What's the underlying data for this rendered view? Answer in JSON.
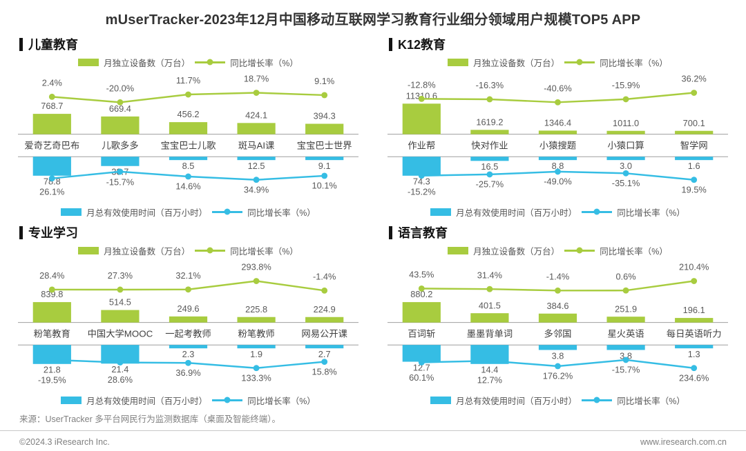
{
  "title": "mUserTracker-2023年12月中国移动互联网学习教育行业细分领域用户规模TOP5 APP",
  "legend": {
    "devices": "月独立设备数（万台）",
    "usage": "月总有效使用时间（百万小时）",
    "growth": "同比增长率（%）"
  },
  "colors": {
    "green": "#a8cc3f",
    "blue": "#35bde4",
    "axis": "#9e9e9e",
    "value_text": "#595959",
    "app_text": "#404040"
  },
  "footer": {
    "source": "来源：UserTracker 多平台网民行为监测数据库（桌面及智能终端）。",
    "copyright": "©2024.3 iResearch Inc.",
    "website": "www.iresearch.com.cn"
  },
  "chart_data": [
    {
      "type": "bar",
      "title": "儿童教育",
      "legend_position": "top and bottom, centered",
      "grid": false,
      "layout": "mirrored bar chart: green bars up from shared axis band, blue bars down; growth lines overlaid",
      "categories": [
        "爱奇艺奇巴布",
        "儿歌多多",
        "宝宝巴士儿歌",
        "斑马AI课",
        "宝宝巴士世界"
      ],
      "series": [
        {
          "name": "月独立设备数（万台）",
          "type": "bar",
          "color": "green",
          "values": [
            768.7,
            669.4,
            456.2,
            424.1,
            394.3
          ]
        },
        {
          "name": "同比增长率（%）",
          "type": "line",
          "color": "green",
          "values": [
            2.4,
            -20.0,
            11.7,
            18.7,
            9.1
          ]
        },
        {
          "name": "月总有效使用时间（百万小时）",
          "type": "bar",
          "color": "blue",
          "mirrored": true,
          "values": [
            78.8,
            38.7,
            8.5,
            12.5,
            9.1
          ]
        },
        {
          "name": "同比增长率（%）",
          "type": "line",
          "color": "blue",
          "mirrored": true,
          "values": [
            26.1,
            -15.7,
            14.6,
            34.9,
            10.1
          ]
        }
      ]
    },
    {
      "type": "bar",
      "title": "K12教育",
      "legend_position": "top and bottom, centered",
      "grid": false,
      "layout": "mirrored bar chart: green bars up from shared axis band, blue bars down; growth lines overlaid",
      "categories": [
        "作业帮",
        "快对作业",
        "小猿搜题",
        "小猿口算",
        "智学网"
      ],
      "series": [
        {
          "name": "月独立设备数（万台）",
          "type": "bar",
          "color": "green",
          "values": [
            11310.6,
            1619.2,
            1346.4,
            1011.0,
            700.1
          ]
        },
        {
          "name": "同比增长率（%）",
          "type": "line",
          "color": "green",
          "values": [
            -12.8,
            -16.3,
            -40.6,
            -15.9,
            36.2
          ]
        },
        {
          "name": "月总有效使用时间（百万小时）",
          "type": "bar",
          "color": "blue",
          "mirrored": true,
          "values": [
            74.3,
            16.5,
            8.8,
            3.0,
            1.6
          ]
        },
        {
          "name": "同比增长率（%）",
          "type": "line",
          "color": "blue",
          "mirrored": true,
          "values": [
            -15.2,
            -25.7,
            -49.0,
            -35.1,
            19.5
          ]
        }
      ]
    },
    {
      "type": "bar",
      "title": "专业学习",
      "legend_position": "top and bottom, centered",
      "grid": false,
      "layout": "mirrored bar chart: green bars up from shared axis band, blue bars down; growth lines overlaid",
      "categories": [
        "粉笔教育",
        "中国大学MOOC",
        "一起考教师",
        "粉笔教师",
        "网易公开课"
      ],
      "series": [
        {
          "name": "月独立设备数（万台）",
          "type": "bar",
          "color": "green",
          "values": [
            839.8,
            514.5,
            249.6,
            225.8,
            224.9
          ]
        },
        {
          "name": "同比增长率（%）",
          "type": "line",
          "color": "green",
          "values": [
            28.4,
            27.3,
            32.1,
            293.8,
            -1.4
          ]
        },
        {
          "name": "月总有效使用时间（百万小时）",
          "type": "bar",
          "color": "blue",
          "mirrored": true,
          "values": [
            21.8,
            21.4,
            2.3,
            1.9,
            2.7
          ]
        },
        {
          "name": "同比增长率（%）",
          "type": "line",
          "color": "blue",
          "mirrored": true,
          "values": [
            -19.5,
            28.6,
            36.9,
            133.3,
            15.8
          ]
        }
      ]
    },
    {
      "type": "bar",
      "title": "语言教育",
      "legend_position": "top and bottom, centered",
      "grid": false,
      "layout": "mirrored bar chart: green bars up from shared axis band, blue bars down; growth lines overlaid",
      "categories": [
        "百词斩",
        "墨墨背单词",
        "多邻国",
        "星火英语",
        "每日英语听力"
      ],
      "series": [
        {
          "name": "月独立设备数（万台）",
          "type": "bar",
          "color": "green",
          "values": [
            880.2,
            401.5,
            384.6,
            251.9,
            196.1
          ]
        },
        {
          "name": "同比增长率（%）",
          "type": "line",
          "color": "green",
          "values": [
            43.5,
            31.4,
            -1.4,
            0.6,
            210.4
          ]
        },
        {
          "name": "月总有效使用时间（百万小时）",
          "type": "bar",
          "color": "blue",
          "mirrored": true,
          "values": [
            12.7,
            14.4,
            3.8,
            3.8,
            1.3
          ]
        },
        {
          "name": "同比增长率（%）",
          "type": "line",
          "color": "blue",
          "mirrored": true,
          "values": [
            60.1,
            12.7,
            176.2,
            -15.7,
            234.6
          ]
        }
      ]
    }
  ]
}
